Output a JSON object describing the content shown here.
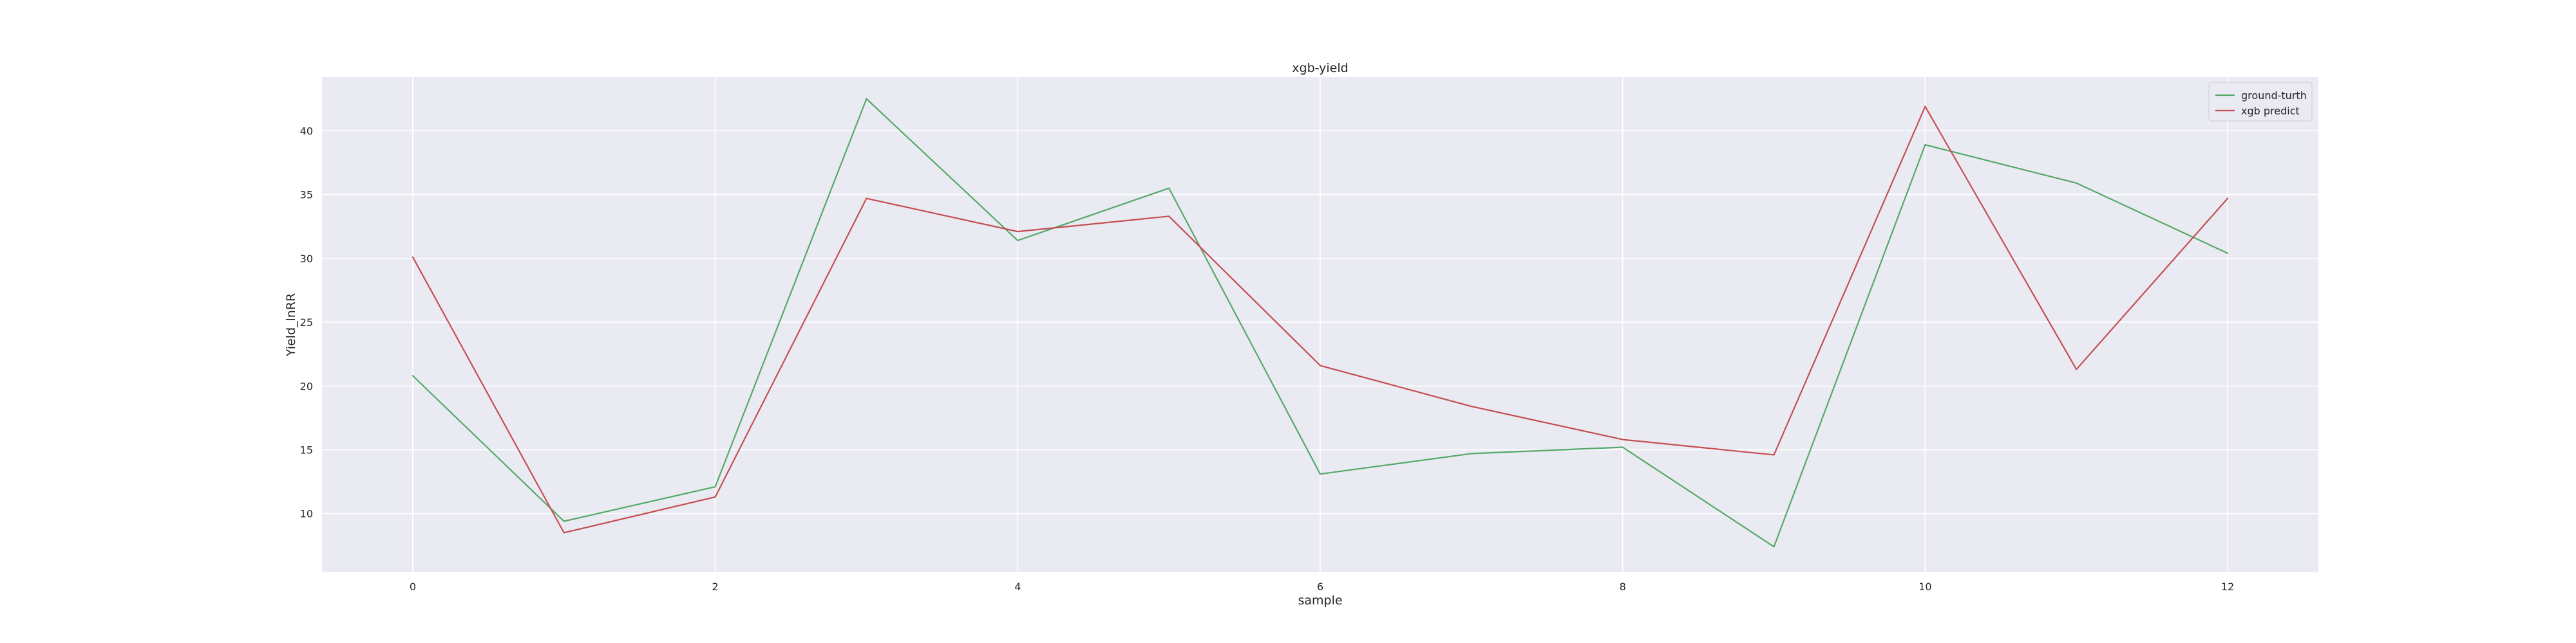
{
  "chart_data": {
    "type": "line",
    "title": "xgb-yield",
    "xlabel": "sample",
    "ylabel": "Yield_lnRR",
    "x": [
      0,
      1,
      2,
      3,
      4,
      5,
      6,
      7,
      8,
      9,
      10,
      11,
      12
    ],
    "series": [
      {
        "name": "ground-turth",
        "color": "#55a868",
        "values": [
          20.8,
          9.4,
          12.1,
          42.5,
          31.4,
          35.5,
          13.1,
          14.7,
          15.2,
          7.4,
          38.9,
          35.9,
          30.4
        ]
      },
      {
        "name": "xgb predict",
        "color": "#c44e52",
        "values": [
          30.1,
          8.5,
          11.3,
          34.7,
          32.1,
          33.3,
          21.6,
          18.4,
          15.8,
          14.6,
          41.9,
          21.3,
          34.7
        ]
      }
    ],
    "xlim": [
      -0.6,
      12.6
    ],
    "ylim": [
      5.4,
      44.2
    ],
    "xticks": [
      0,
      2,
      4,
      6,
      8,
      10,
      12
    ],
    "yticks": [
      10,
      15,
      20,
      25,
      30,
      35,
      40
    ],
    "grid": true,
    "legend_position": "top-right",
    "colors": {
      "plot_background": "#eaeaf2",
      "grid": "#ffffff"
    }
  }
}
